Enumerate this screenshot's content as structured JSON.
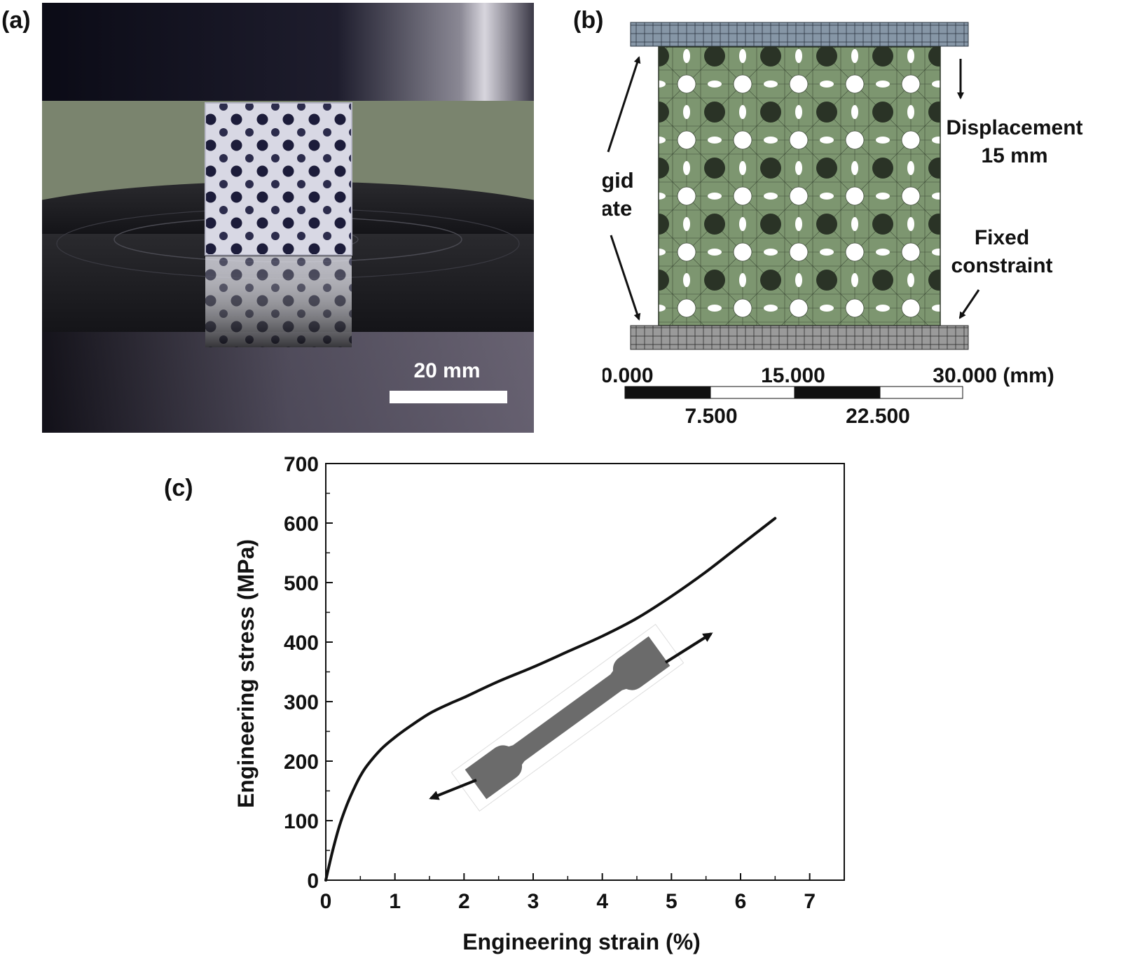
{
  "panels": {
    "a": {
      "label": "(a)",
      "scale_bar": "20 mm"
    },
    "b": {
      "label": "(b)",
      "annotations": {
        "displacement": "Displacement",
        "displacement_value": "15 mm",
        "rigid_plate_line1": "Rigid",
        "rigid_plate_line2": "plate",
        "fixed_line1": "Fixed",
        "fixed_line2": "constraint"
      },
      "scale_top": [
        "0.000",
        "15.000",
        "30.000 (mm)"
      ],
      "scale_bottom": [
        "7.500",
        "22.500"
      ]
    },
    "c": {
      "label": "(c)"
    }
  },
  "chart_data": {
    "type": "line",
    "title": "",
    "xlabel": "Engineering strain (%)",
    "ylabel": "Engineering stress (MPa)",
    "xlim": [
      0,
      7.5
    ],
    "ylim": [
      0,
      700
    ],
    "xticks": [
      "0",
      "1",
      "2",
      "3",
      "4",
      "5",
      "6",
      "7"
    ],
    "yticks": [
      "0",
      "100",
      "200",
      "300",
      "400",
      "500",
      "600",
      "700"
    ],
    "grid": false,
    "series": [
      {
        "x": [
          0,
          0.1,
          0.2,
          0.3,
          0.4,
          0.5,
          0.6,
          0.8,
          1.0,
          1.2,
          1.5,
          1.8,
          2.0,
          2.5,
          3.0,
          3.5,
          4.0,
          4.5,
          5.0,
          5.5,
          6.0,
          6.3,
          6.5
        ],
        "y": [
          0,
          50,
          92,
          125,
          152,
          175,
          193,
          220,
          240,
          257,
          280,
          297,
          307,
          334,
          358,
          384,
          410,
          440,
          477,
          518,
          563,
          590,
          608
        ]
      }
    ]
  }
}
